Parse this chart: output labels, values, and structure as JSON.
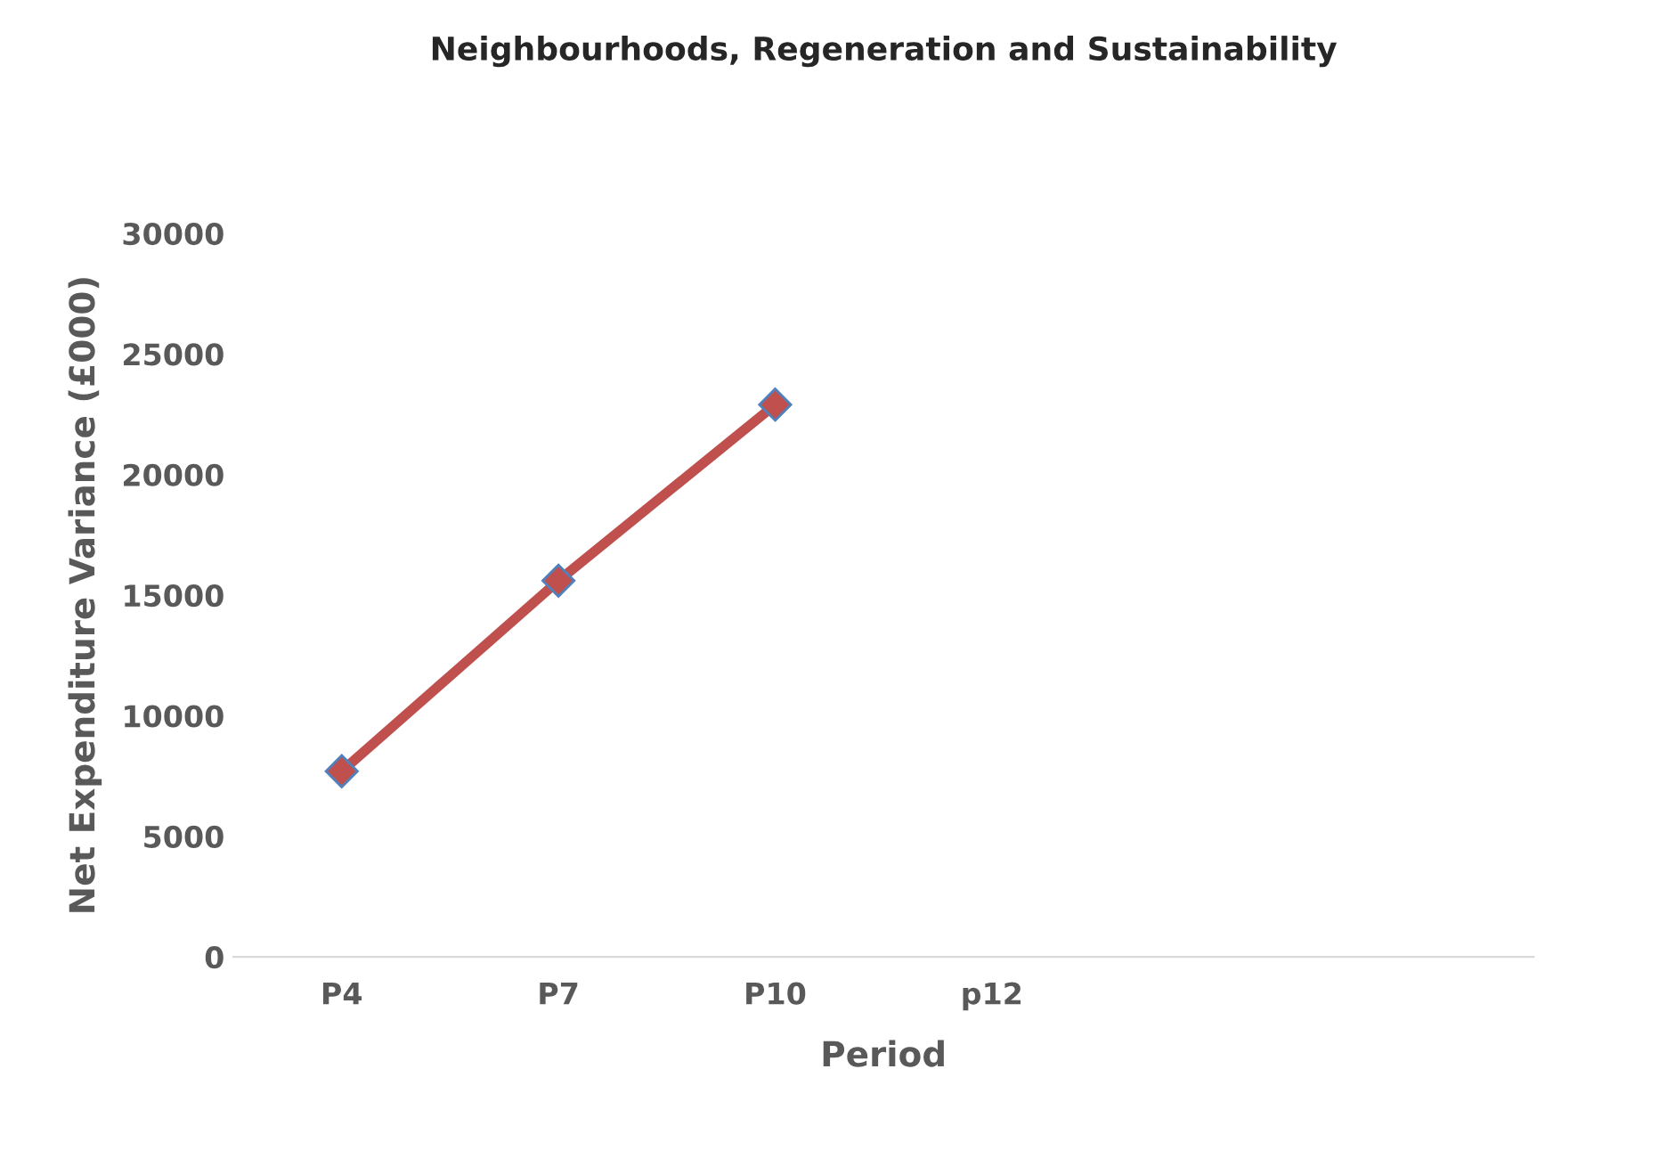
{
  "chart_data": {
    "type": "line",
    "title": "Neighbourhoods, Regeneration and Sustainability",
    "xlabel": "Period",
    "ylabel": "Net Expenditure Variance (£000)",
    "categories": [
      "P4",
      "P7",
      "P10",
      "p12",
      null,
      null
    ],
    "series": [
      {
        "color": "#c0504d",
        "values": [
          7700,
          15600,
          22900,
          null,
          null,
          null
        ]
      }
    ],
    "ylim": [
      0,
      30000
    ],
    "yticks": [
      0,
      5000,
      10000,
      15000,
      20000,
      25000,
      30000
    ],
    "grid": false,
    "legend": false,
    "marker": "diamond",
    "line_style": "solid"
  }
}
